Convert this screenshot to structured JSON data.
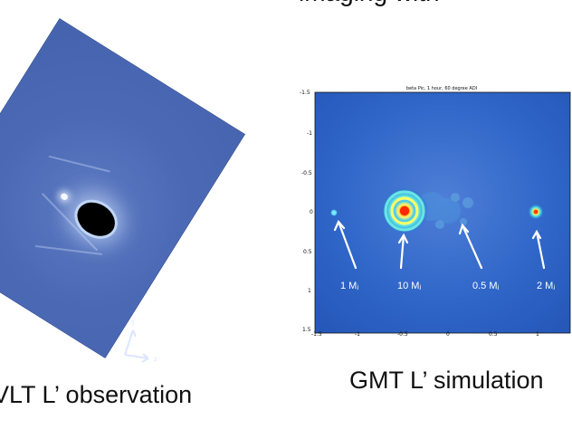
{
  "slide": {
    "header_fragment": "imaging with  ",
    "left_caption": "VLT L’ observation",
    "right_caption": "GMT L’ simulation"
  },
  "gmt_panel": {
    "title": "beta Pic, 1 hour, 60 degree ADI",
    "y_ticks": [
      "-1.5",
      "-1",
      "-0.5",
      "0",
      "0.5",
      "1",
      "1.5"
    ],
    "x_ticks": [
      "-1.5",
      "-1",
      "-0.5",
      "0",
      "0.5",
      "1"
    ],
    "labels": [
      {
        "text": "1 Mⱼ"
      },
      {
        "text": "10 Mⱼ"
      },
      {
        "text": "0.5 Mⱼ"
      },
      {
        "text": "2 Mⱼ"
      }
    ]
  },
  "colors": {
    "vlt_background": "#4b69b5",
    "sim_background": "#2c63c6",
    "planet_core": "#ff4400",
    "ring": "#f5ff59"
  }
}
